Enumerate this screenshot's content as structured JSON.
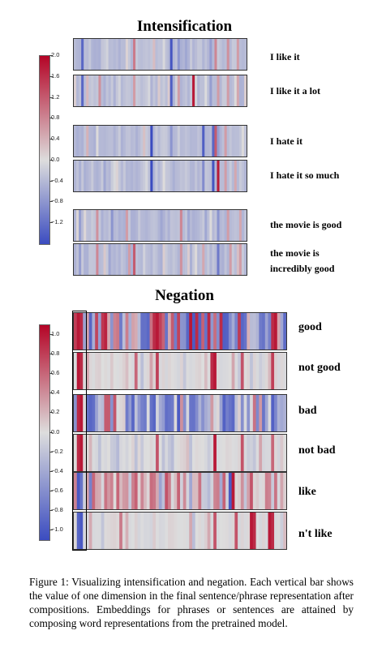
{
  "figure": {
    "caption": "Figure 1: Visualizing intensification and negation. Each vertical bar shows the value of one dimension in the final sentence/phrase representation after compositions. Embeddings for phrases or sentences are attained by composing word representations from the pretrained model."
  },
  "chart_data": [
    {
      "type": "heatmap",
      "title": "Intensification",
      "colorbar": {
        "range": [
          -1.6,
          2.0
        ],
        "ticks": [
          "2.0",
          "1.6",
          "1.2",
          "0.8",
          "0.4",
          "0.0",
          "−0.4",
          "−0.8",
          "−1.2"
        ],
        "low_color": "#3b4cc0",
        "mid_color": "#dddddd",
        "high_color": "#b40426"
      },
      "rows": [
        {
          "label": "I like it",
          "columns": 70,
          "highlights": [
            [
              3,
              -1.3
            ],
            [
              24,
              0.9
            ],
            [
              39,
              -1.5
            ],
            [
              42,
              -0.8
            ],
            [
              45,
              -0.6
            ],
            [
              55,
              -0.7
            ],
            [
              57,
              0.8
            ],
            [
              62,
              0.7
            ],
            [
              66,
              0.6
            ]
          ]
        },
        {
          "label": "I like it a lot",
          "columns": 70,
          "highlights": [
            [
              3,
              -1.3
            ],
            [
              10,
              0.7
            ],
            [
              24,
              0.6
            ],
            [
              39,
              -1.4
            ],
            [
              42,
              0.6
            ],
            [
              48,
              1.8
            ],
            [
              55,
              -0.7
            ],
            [
              58,
              0.6
            ],
            [
              62,
              0.6
            ],
            [
              66,
              0.5
            ]
          ]
        },
        {
          "label": "I hate it",
          "columns": 70,
          "highlights": [
            [
              1,
              -0.5
            ],
            [
              5,
              0.4
            ],
            [
              31,
              -1.6
            ],
            [
              39,
              -0.8
            ],
            [
              52,
              -1.4
            ],
            [
              56,
              -1.3
            ],
            [
              57,
              1.2
            ],
            [
              58,
              -0.7
            ],
            [
              61,
              0.6
            ]
          ]
        },
        {
          "label": "I hate it so much",
          "columns": 70,
          "highlights": [
            [
              4,
              -0.5
            ],
            [
              12,
              -0.6
            ],
            [
              31,
              -1.6
            ],
            [
              40,
              -0.5
            ],
            [
              52,
              -0.9
            ],
            [
              56,
              -1.5
            ],
            [
              58,
              1.8
            ],
            [
              61,
              0.6
            ],
            [
              65,
              0.5
            ]
          ]
        },
        {
          "label": "the movie is good",
          "columns": 70,
          "highlights": [
            [
              2,
              -0.7
            ],
            [
              9,
              0.7
            ],
            [
              15,
              -0.8
            ],
            [
              21,
              0.6
            ],
            [
              35,
              -0.6
            ],
            [
              43,
              0.8
            ],
            [
              46,
              -0.6
            ],
            [
              53,
              -0.6
            ],
            [
              58,
              -0.8
            ],
            [
              62,
              0.6
            ],
            [
              67,
              0.5
            ]
          ]
        },
        {
          "label": "the movie is incredibly good",
          "columns": 70,
          "highlights": [
            [
              2,
              -0.7
            ],
            [
              9,
              0.8
            ],
            [
              14,
              -0.6
            ],
            [
              22,
              0.6
            ],
            [
              24,
              1.2
            ],
            [
              35,
              -0.5
            ],
            [
              43,
              0.7
            ],
            [
              47,
              -0.5
            ],
            [
              52,
              0.5
            ],
            [
              58,
              -1.1
            ],
            [
              63,
              0.6
            ],
            [
              67,
              0.6
            ]
          ]
        }
      ]
    },
    {
      "type": "heatmap",
      "title": "Negation",
      "colorbar": {
        "range": [
          -1.1,
          1.1
        ],
        "ticks": [
          "1.0",
          "0.8",
          "0.6",
          "0.4",
          "0.2",
          "0.0",
          "−0.2",
          "−0.4",
          "−0.6",
          "−0.8",
          "−1.0"
        ],
        "low_color": "#3b4cc0",
        "mid_color": "#dddddd",
        "high_color": "#b40426"
      },
      "highlighted_column": 1,
      "rows": [
        {
          "label": "good",
          "columns": 70,
          "default_pattern": "strong-mixed",
          "highlights": [
            [
              0,
              0.8
            ],
            [
              1,
              1.0
            ],
            [
              2,
              0.9
            ],
            [
              5,
              -0.9
            ],
            [
              26,
              0.9
            ],
            [
              27,
              1.0
            ],
            [
              37,
              -0.9
            ],
            [
              38,
              1.0
            ],
            [
              40,
              0.9
            ],
            [
              43,
              -0.8
            ],
            [
              48,
              0.9
            ],
            [
              55,
              -0.9
            ],
            [
              62,
              -0.8
            ],
            [
              65,
              0.9
            ],
            [
              66,
              1.0
            ]
          ]
        },
        {
          "label": "not good",
          "columns": 70,
          "default_pattern": "light-gray",
          "highlights": [
            [
              1,
              1.0
            ],
            [
              2,
              0.9
            ],
            [
              20,
              0.6
            ],
            [
              27,
              0.8
            ],
            [
              45,
              0.9
            ],
            [
              46,
              1.0
            ],
            [
              55,
              0.7
            ],
            [
              65,
              0.8
            ]
          ]
        },
        {
          "label": "bad",
          "columns": 70,
          "default_pattern": "blue-mixed",
          "highlights": [
            [
              1,
              0.9
            ],
            [
              2,
              1.0
            ],
            [
              5,
              -0.9
            ],
            [
              19,
              -0.9
            ],
            [
              22,
              -0.7
            ],
            [
              26,
              -0.9
            ],
            [
              31,
              -0.8
            ],
            [
              36,
              -0.6
            ]
          ]
        },
        {
          "label": "not bad",
          "columns": 70,
          "default_pattern": "light-gray",
          "highlights": [
            [
              1,
              0.9
            ],
            [
              2,
              1.0
            ],
            [
              27,
              0.7
            ],
            [
              46,
              1.0
            ],
            [
              55,
              0.7
            ],
            [
              65,
              0.6
            ]
          ]
        },
        {
          "label": "like",
          "columns": 70,
          "default_pattern": "red-mixed",
          "highlights": [
            [
              1,
              -1.0
            ],
            [
              2,
              -0.8
            ],
            [
              5,
              -0.7
            ],
            [
              14,
              0.6
            ],
            [
              30,
              0.7
            ],
            [
              51,
              -1.0
            ],
            [
              52,
              1.0
            ],
            [
              58,
              0.7
            ]
          ]
        },
        {
          "label": "n't like",
          "columns": 70,
          "default_pattern": "light-gray",
          "highlights": [
            [
              1,
              -0.9
            ],
            [
              2,
              -1.0
            ],
            [
              15,
              0.5
            ],
            [
              46,
              0.7
            ],
            [
              53,
              0.7
            ],
            [
              58,
              1.0
            ],
            [
              59,
              0.9
            ],
            [
              64,
              1.0
            ],
            [
              65,
              0.9
            ]
          ]
        }
      ]
    }
  ]
}
